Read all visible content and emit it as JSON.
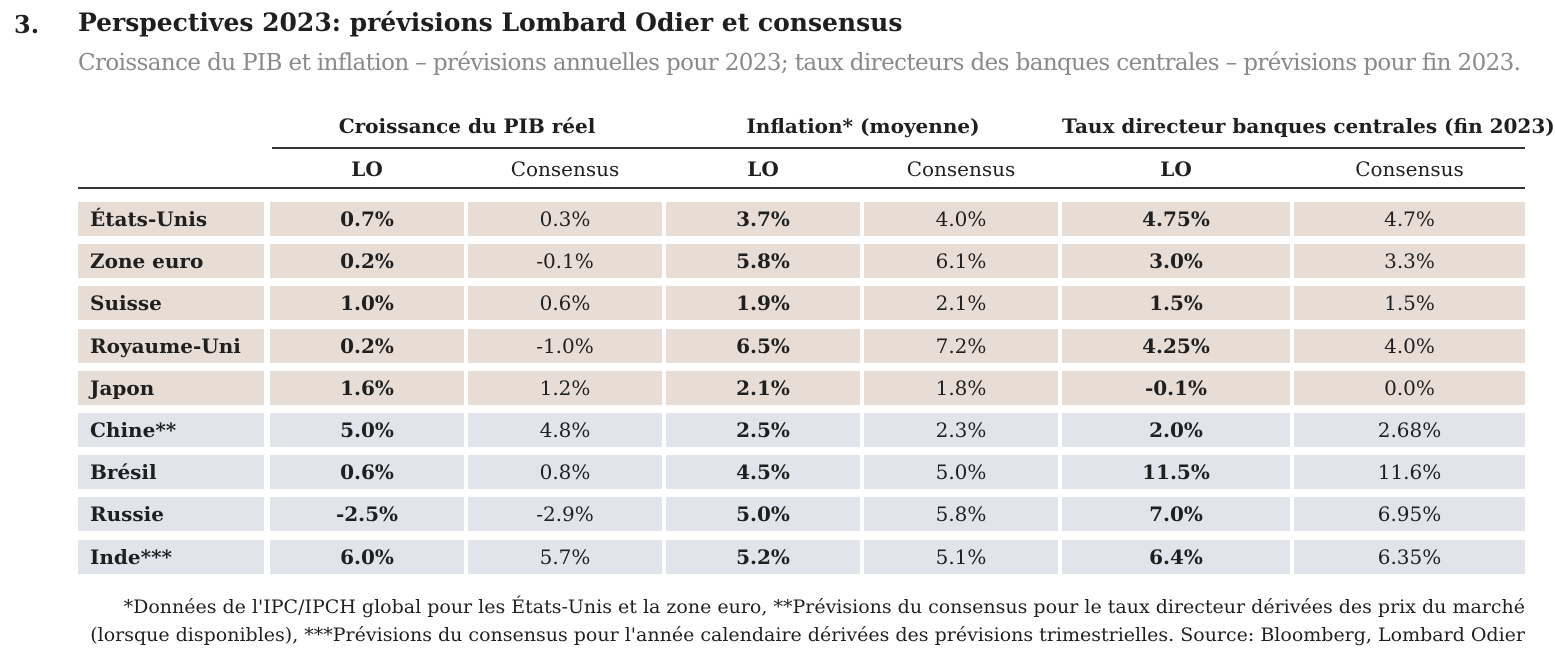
{
  "section_number": "3.",
  "title": "Perspectives 2023: prévisions Lombard Odier et consensus",
  "subtitle": "Croissance du PIB et inflation – prévisions annuelles pour 2023; taux directeurs des banques centrales – prévisions pour fin 2023.",
  "table": {
    "groups": [
      {
        "label": "Croissance du PIB réel"
      },
      {
        "label": "Inflation* (moyenne)"
      },
      {
        "label": "Taux directeur banques centrales (fin 2023)"
      }
    ],
    "subheaders": [
      "LO",
      "Consensus",
      "LO",
      "Consensus",
      "LO",
      "Consensus"
    ],
    "rows": [
      {
        "name": "États-Unis",
        "values": [
          "0.7%",
          "0.3%",
          "3.7%",
          "4.0%",
          "4.75%",
          "4.7%"
        ]
      },
      {
        "name": "Zone euro",
        "values": [
          "0.2%",
          "-0.1%",
          "5.8%",
          "6.1%",
          "3.0%",
          "3.3%"
        ]
      },
      {
        "name": "Suisse",
        "values": [
          "1.0%",
          "0.6%",
          "1.9%",
          "2.1%",
          "1.5%",
          "1.5%"
        ]
      },
      {
        "name": "Royaume-Uni",
        "values": [
          "0.2%",
          "-1.0%",
          "6.5%",
          "7.2%",
          "4.25%",
          "4.0%"
        ]
      },
      {
        "name": "Japon",
        "values": [
          "1.6%",
          "1.2%",
          "2.1%",
          "1.8%",
          "-0.1%",
          "0.0%"
        ]
      },
      {
        "name": "Chine**",
        "values": [
          "5.0%",
          "4.8%",
          "2.5%",
          "2.3%",
          "2.0%",
          "2.68%"
        ]
      },
      {
        "name": "Brésil",
        "values": [
          "0.6%",
          "0.8%",
          "4.5%",
          "5.0%",
          "11.5%",
          "11.6%"
        ]
      },
      {
        "name": "Russie",
        "values": [
          "-2.5%",
          "-2.9%",
          "5.0%",
          "5.8%",
          "7.0%",
          "6.95%"
        ]
      },
      {
        "name": "Inde***",
        "values": [
          "6.0%",
          "5.7%",
          "5.2%",
          "5.1%",
          "6.4%",
          "6.35%"
        ]
      }
    ]
  },
  "footnote": {
    "line1": "*Données de l'IPC/IPCH global pour les États-Unis et la zone euro, **Prévisions du consensus pour le taux directeur dérivées des prix du marché",
    "line2": "(lorsque disponibles), ***Prévisions du consensus pour l'année calendaire dérivées des prévisions trimestrielles. Source: Bloomberg, Lombard Odier"
  },
  "colors": {
    "developed_row_bg": "#e8ddd4",
    "emerging_row_bg": "#e1e4eb"
  }
}
